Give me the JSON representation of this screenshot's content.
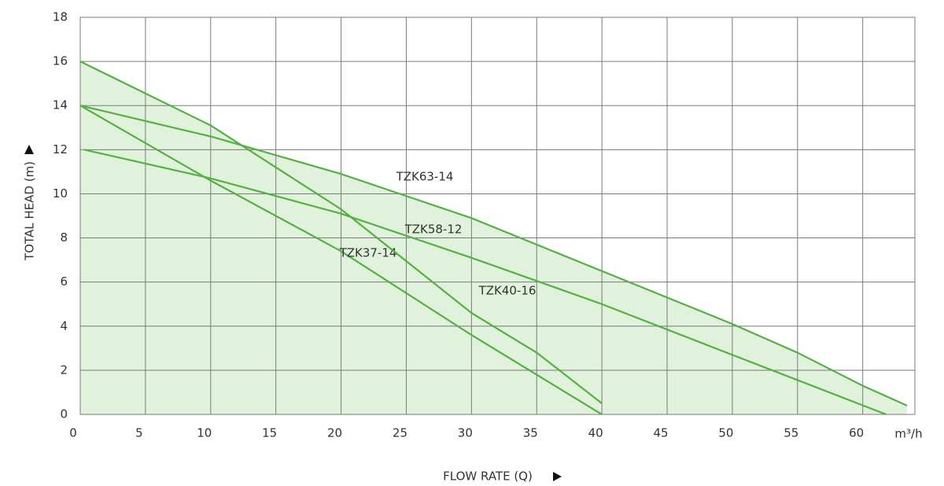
{
  "chart_data": {
    "type": "line",
    "x_label": "FLOW RATE (Q)",
    "y_label": "TOTAL HEAD (m)",
    "x_unit": "m³/h",
    "xlim": [
      0,
      64
    ],
    "ylim": [
      0,
      18
    ],
    "xticks": [
      0,
      5,
      10,
      15,
      20,
      25,
      30,
      35,
      40,
      45,
      50,
      55,
      60
    ],
    "yticks": [
      0,
      2,
      4,
      6,
      8,
      10,
      12,
      14,
      16,
      18
    ],
    "grid": true,
    "fill_color": "#e0f2dc",
    "series": [
      {
        "name": "TZK63-14",
        "color": "#55b043",
        "x": [
          0,
          10,
          20,
          30,
          40,
          50,
          55,
          60,
          63.4
        ],
        "values": [
          14,
          12.6,
          10.9,
          8.9,
          6.5,
          4.1,
          2.8,
          1.3,
          0.4
        ]
      },
      {
        "name": "TZK58-12",
        "color": "#55b043",
        "x": [
          0.3,
          10,
          20,
          30,
          40,
          50,
          61.8
        ],
        "values": [
          12,
          10.7,
          9.1,
          7.1,
          5,
          2.7,
          0
        ]
      },
      {
        "name": "TZK37-14",
        "color": "#55b043",
        "x": [
          0,
          10,
          20,
          30,
          40
        ],
        "values": [
          14,
          10.6,
          7.4,
          3.6,
          0
        ]
      },
      {
        "name": "TZK40-16",
        "color": "#55b043",
        "x": [
          0,
          10,
          20,
          30,
          35,
          40
        ],
        "values": [
          16,
          13.1,
          9.3,
          4.6,
          2.8,
          0.5
        ]
      }
    ]
  }
}
